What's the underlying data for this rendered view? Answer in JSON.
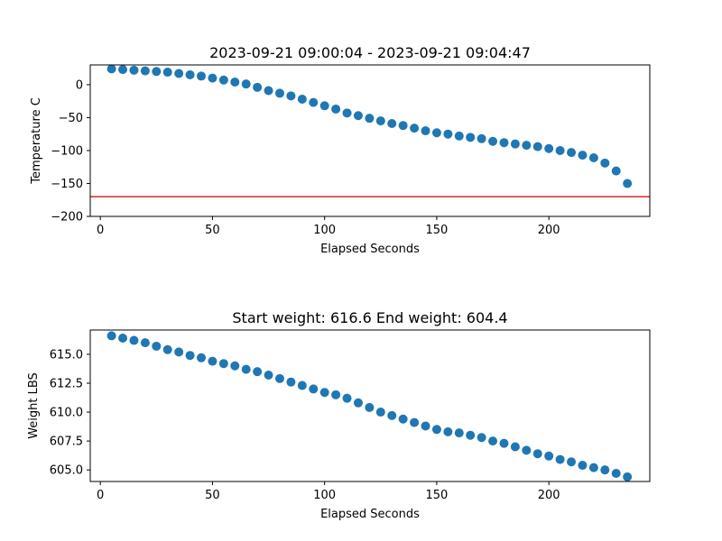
{
  "chart_data": [
    {
      "type": "scatter",
      "title": "2023-09-21 09:00:04 - 2023-09-21 09:04:47",
      "xlabel": "Elapsed Seconds",
      "ylabel": "Temperature C",
      "xlim": [
        -4.5,
        245
      ],
      "ylim": [
        -200,
        30
      ],
      "xticks": [
        0,
        50,
        100,
        150,
        200
      ],
      "yticks": [
        -200,
        -150,
        -100,
        -50,
        0
      ],
      "ytick_labels": [
        "−200",
        "−150",
        "−100",
        "−50",
        "0"
      ],
      "grid": false,
      "point_color": "#1f77b4",
      "reference_line": {
        "y": -170,
        "color": "#d62728"
      },
      "x": [
        5,
        10,
        15,
        20,
        25,
        30,
        35,
        40,
        45,
        50,
        55,
        60,
        65,
        70,
        75,
        80,
        85,
        90,
        95,
        100,
        105,
        110,
        115,
        120,
        125,
        130,
        135,
        140,
        145,
        150,
        155,
        160,
        165,
        170,
        175,
        180,
        185,
        190,
        195,
        200,
        205,
        210,
        215,
        220,
        225,
        230,
        235
      ],
      "y": [
        24,
        23,
        22,
        21,
        20,
        19,
        17,
        15,
        13,
        10,
        7,
        4,
        1,
        -4,
        -9,
        -13,
        -17,
        -22,
        -27,
        -32,
        -37,
        -43,
        -47,
        -51,
        -55,
        -59,
        -62,
        -66,
        -70,
        -73,
        -75,
        -78,
        -80,
        -82,
        -86,
        -88,
        -90,
        -92,
        -94,
        -97,
        -100,
        -103,
        -107,
        -111,
        -119,
        -131,
        -150
      ]
    },
    {
      "type": "scatter",
      "title": "Start weight: 616.6 End weight: 604.4",
      "xlabel": "Elapsed Seconds",
      "ylabel": "Weight LBS",
      "xlim": [
        -4.5,
        245
      ],
      "ylim": [
        604.0,
        617.1
      ],
      "xticks": [
        0,
        50,
        100,
        150,
        200
      ],
      "yticks": [
        605.0,
        607.5,
        610.0,
        612.5,
        615.0
      ],
      "ytick_labels": [
        "605.0",
        "607.5",
        "610.0",
        "612.5",
        "615.0"
      ],
      "grid": false,
      "point_color": "#1f77b4",
      "x": [
        5,
        10,
        15,
        20,
        25,
        30,
        35,
        40,
        45,
        50,
        55,
        60,
        65,
        70,
        75,
        80,
        85,
        90,
        95,
        100,
        105,
        110,
        115,
        120,
        125,
        130,
        135,
        140,
        145,
        150,
        155,
        160,
        165,
        170,
        175,
        180,
        185,
        190,
        195,
        200,
        205,
        210,
        215,
        220,
        225,
        230,
        235
      ],
      "y": [
        616.6,
        616.4,
        616.2,
        616.0,
        615.7,
        615.4,
        615.2,
        614.9,
        614.7,
        614.4,
        614.2,
        614.0,
        613.7,
        613.5,
        613.2,
        612.9,
        612.6,
        612.3,
        612.0,
        611.7,
        611.5,
        611.2,
        610.8,
        610.4,
        610.0,
        609.7,
        609.4,
        609.1,
        608.8,
        608.5,
        608.3,
        608.2,
        608.0,
        607.8,
        607.5,
        607.3,
        607.0,
        606.7,
        606.4,
        606.2,
        605.9,
        605.7,
        605.4,
        605.2,
        605.0,
        604.7,
        604.4
      ]
    }
  ]
}
